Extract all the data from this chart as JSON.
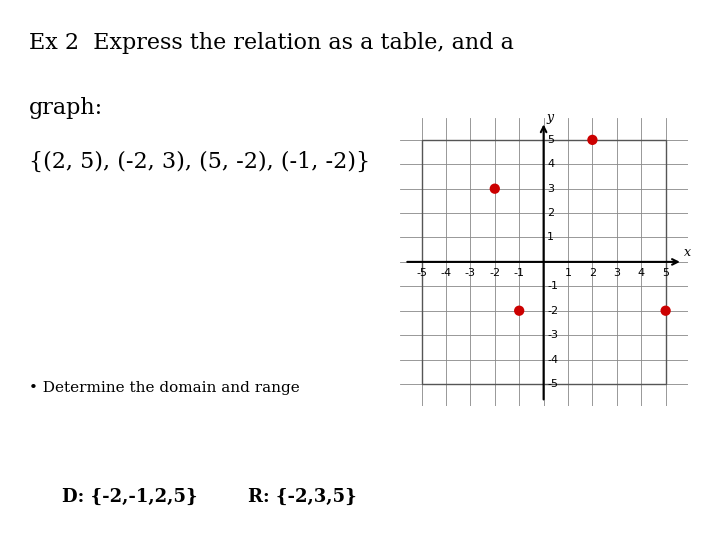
{
  "title_line1": "Ex 2  Express the relation as a table, and a",
  "title_line2": "graph:",
  "title_line3": "{(2, 5), (-2, 3), (5, -2), (-1, -2)}",
  "points": [
    [
      2,
      5
    ],
    [
      -2,
      3
    ],
    [
      -1,
      -2
    ],
    [
      5,
      -2
    ]
  ],
  "point_color": "#cc0000",
  "point_size": 55,
  "axis_range": [
    -5,
    5
  ],
  "grid_color": "#888888",
  "box_color": "#555555",
  "bullet_text": "Determine the domain and range",
  "domain_text": "D: {-2,-1,2,5}",
  "range_text": "R: {-2,3,5}",
  "bg_color": "#ffffff",
  "axis_color": "#000000",
  "text_color": "#000000",
  "title_fontsize": 16,
  "label_fontsize": 8,
  "bullet_fontsize": 11,
  "dr_fontsize": 13
}
